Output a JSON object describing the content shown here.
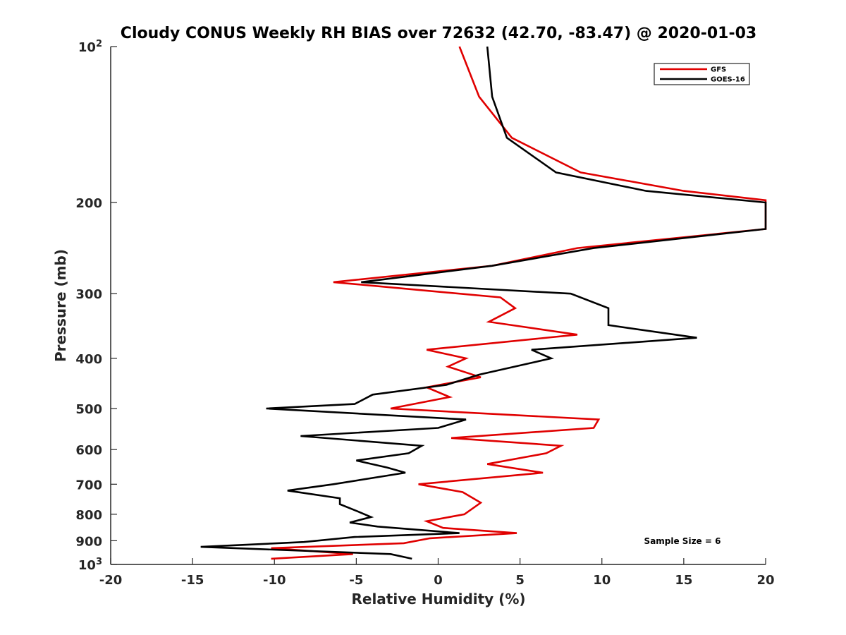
{
  "chart_data": {
    "type": "line",
    "title": "Cloudy CONUS Weekly RH BIAS over 72632 (42.70, -83.47) @ 2020-01-03",
    "xlabel": "Relative Humidity (%)",
    "ylabel": "Pressure (mb)",
    "xlim": [
      -20,
      20
    ],
    "ylim": [
      100,
      1000
    ],
    "y_scale": "log",
    "y_reversed": true,
    "grid": false,
    "legend_position": "top-right",
    "x_ticks": [
      "-20",
      "-15",
      "-10",
      "-5",
      "0",
      "5",
      "10",
      "15",
      "20"
    ],
    "y_ticks": [
      {
        "value": 100,
        "base": "10",
        "exp": "2"
      },
      {
        "value": 200,
        "label": "200"
      },
      {
        "value": 300,
        "label": "300"
      },
      {
        "value": 400,
        "label": "400"
      },
      {
        "value": 500,
        "label": "500"
      },
      {
        "value": 600,
        "label": "600"
      },
      {
        "value": 700,
        "label": "700"
      },
      {
        "value": 800,
        "label": "800"
      },
      {
        "value": 900,
        "label": "900"
      },
      {
        "value": 1000,
        "base": "10",
        "exp": "3"
      }
    ],
    "annotation": "Sample Size = 6",
    "series": [
      {
        "name": "GFS",
        "color": "#e00000",
        "points": [
          [
            1.3,
            100
          ],
          [
            2.5,
            125
          ],
          [
            4.5,
            150
          ],
          [
            8.7,
            175
          ],
          [
            15,
            190
          ],
          [
            20,
            198
          ],
          [
            20,
            225
          ],
          [
            8.5,
            245
          ],
          [
            3.3,
            265
          ],
          [
            -6.4,
            285
          ],
          [
            3.8,
            305
          ],
          [
            4.7,
            320
          ],
          [
            3.1,
            340
          ],
          [
            8.5,
            360
          ],
          [
            -0.7,
            385
          ],
          [
            1.7,
            400
          ],
          [
            0.6,
            415
          ],
          [
            2.6,
            435
          ],
          [
            -0.7,
            455
          ],
          [
            0.7,
            475
          ],
          [
            -2.9,
            500
          ],
          [
            9.8,
            525
          ],
          [
            9.5,
            545
          ],
          [
            0.8,
            570
          ],
          [
            7.5,
            590
          ],
          [
            6.6,
            610
          ],
          [
            3.0,
            640
          ],
          [
            6.4,
            665
          ],
          [
            -1.2,
            700
          ],
          [
            1.5,
            725
          ],
          [
            2.6,
            760
          ],
          [
            1.6,
            800
          ],
          [
            -0.7,
            825
          ],
          [
            0.3,
            850
          ],
          [
            4.8,
            870
          ],
          [
            -0.5,
            890
          ],
          [
            -2.1,
            910
          ],
          [
            -10.2,
            930
          ],
          [
            -5.2,
            955
          ],
          [
            -10.2,
            975
          ]
        ]
      },
      {
        "name": "GOES-16",
        "color": "#000000",
        "points": [
          [
            3.0,
            100
          ],
          [
            3.3,
            125
          ],
          [
            4.2,
            150
          ],
          [
            7.2,
            175
          ],
          [
            12.7,
            190
          ],
          [
            20,
            200
          ],
          [
            20,
            225
          ],
          [
            9.5,
            245
          ],
          [
            3.3,
            265
          ],
          [
            -4.7,
            285
          ],
          [
            8.1,
            300
          ],
          [
            10.4,
            320
          ],
          [
            10.4,
            345
          ],
          [
            15.8,
            365
          ],
          [
            5.7,
            385
          ],
          [
            6.9,
            400
          ],
          [
            2.5,
            430
          ],
          [
            0.5,
            450
          ],
          [
            -4.0,
            470
          ],
          [
            -5.1,
            490
          ],
          [
            -10.5,
            500
          ],
          [
            1.7,
            525
          ],
          [
            0.0,
            545
          ],
          [
            -8.4,
            565
          ],
          [
            -1.0,
            590
          ],
          [
            -1.8,
            610
          ],
          [
            -5.0,
            630
          ],
          [
            -3.1,
            650
          ],
          [
            -2.0,
            665
          ],
          [
            -6.4,
            700
          ],
          [
            -9.2,
            720
          ],
          [
            -6.0,
            745
          ],
          [
            -6.0,
            765
          ],
          [
            -4.9,
            790
          ],
          [
            -4.1,
            810
          ],
          [
            -5.4,
            830
          ],
          [
            -3.7,
            845
          ],
          [
            1.3,
            870
          ],
          [
            -5.1,
            885
          ],
          [
            -8.2,
            905
          ],
          [
            -14.5,
            925
          ],
          [
            -2.9,
            955
          ],
          [
            -1.6,
            975
          ]
        ]
      }
    ]
  }
}
